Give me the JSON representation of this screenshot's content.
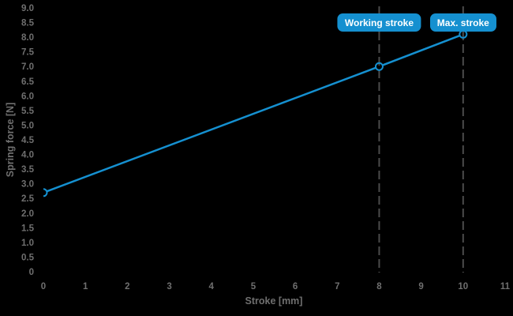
{
  "chart_data": {
    "type": "line",
    "title": "",
    "xlabel": "Stroke [mm]",
    "ylabel": "Spring force [N]",
    "xlim": [
      0,
      11
    ],
    "ylim": [
      0,
      9
    ],
    "grid": false,
    "legend_position": "none",
    "x_ticks": [
      0,
      1,
      2,
      3,
      4,
      5,
      6,
      7,
      8,
      9,
      10,
      11
    ],
    "x_tick_labels": [
      "0",
      "1",
      "2",
      "3",
      "4",
      "5",
      "6",
      "7",
      "8",
      "9",
      "10",
      "11"
    ],
    "y_ticks": [
      0,
      0.5,
      1.0,
      1.5,
      2.0,
      2.5,
      3.0,
      3.5,
      4.0,
      4.5,
      5.0,
      5.5,
      6.0,
      6.5,
      7.0,
      7.5,
      8.0,
      8.5,
      9.0
    ],
    "y_tick_labels": [
      "0",
      "0.5",
      "1.0",
      "1.5",
      "2.0",
      "2.5",
      "3.0",
      "3.5",
      "4.0",
      "4.5",
      "5.0",
      "5.5",
      "6.0",
      "6.5",
      "7.0",
      "7.5",
      "8.0",
      "8.5",
      "9.0"
    ],
    "series": [
      {
        "name": "Spring force",
        "color": "#1590d0",
        "marker": "circle",
        "points": [
          [
            0,
            2.7
          ],
          [
            8,
            7.0
          ],
          [
            10,
            8.1
          ]
        ]
      }
    ],
    "annotations": [
      {
        "x": 8,
        "y": 7.0,
        "label": "Working stroke",
        "line_style": "dashed"
      },
      {
        "x": 10,
        "y": 8.1,
        "label": "Max. stroke",
        "line_style": "dashed"
      }
    ]
  },
  "colors": {
    "background": "#000000",
    "accent_blue": "#1590d0",
    "axis_text": "#6f6f6f",
    "dashed_line": "#4b4b4b",
    "badge_text": "#ffffff",
    "marker_fill": "#000000"
  }
}
